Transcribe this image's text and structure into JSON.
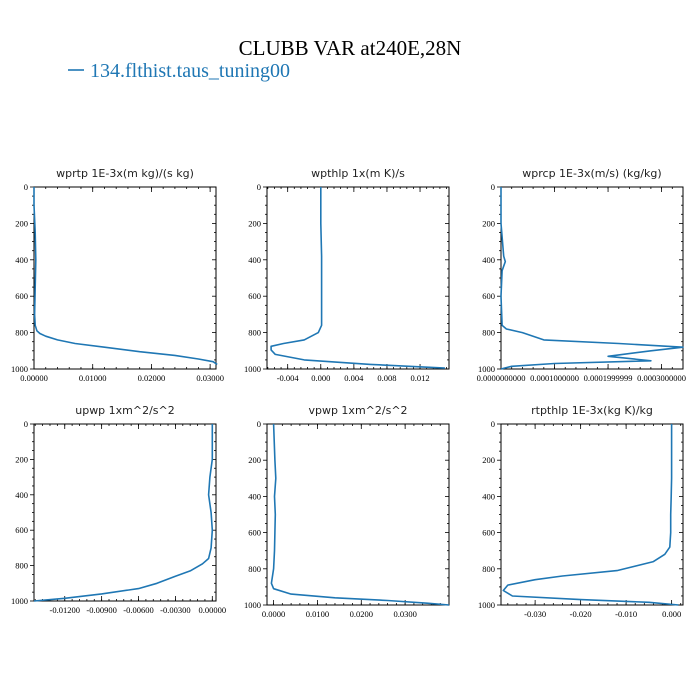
{
  "title": "CLUBB VAR at240E,28N",
  "legend": {
    "label": "134.flthist.taus_tuning00",
    "color": "#1f77b4"
  },
  "chart_data": [
    {
      "type": "line",
      "title": "wprtp  1E-3x(m kg)/(s kg)",
      "xlim": [
        0.0,
        0.031
      ],
      "ylim": [
        1000,
        0
      ],
      "y_inverted": true,
      "xticks": [
        0.0,
        0.01,
        0.02,
        0.03
      ],
      "xtick_labels": [
        "0.00000",
        "0.01000",
        "0.02000",
        "0.03000"
      ],
      "yticks": [
        0,
        200,
        400,
        600,
        800,
        1000
      ],
      "ytick_labels": [
        "0",
        "200",
        "400",
        "600",
        "800",
        "1000"
      ],
      "series": [
        {
          "name": "134.flthist.taus_tuning00",
          "color": "#1f77b4",
          "x": [
            0.0,
            0.0,
            0.0002,
            0.0003,
            0.0002,
            0.0001,
            0.0002,
            0.0005,
            0.001,
            0.002,
            0.004,
            0.007,
            0.012,
            0.018,
            0.024,
            0.028,
            0.0305,
            0.0312
          ],
          "y": [
            0,
            100,
            250,
            400,
            550,
            700,
            760,
            790,
            805,
            820,
            840,
            860,
            880,
            905,
            925,
            945,
            960,
            975
          ]
        }
      ]
    },
    {
      "type": "line",
      "title": "wpthlp  1x(m K)/s",
      "xlim": [
        -0.0065,
        0.0155
      ],
      "ylim": [
        1000,
        0
      ],
      "y_inverted": true,
      "xticks": [
        -0.004,
        0.0,
        0.004,
        0.008,
        0.012
      ],
      "xtick_labels": [
        "-0.004",
        "0.000",
        "0.004",
        "0.008",
        "0.012"
      ],
      "yticks": [
        0,
        200,
        400,
        600,
        800,
        1000
      ],
      "ytick_labels": [
        "0",
        "200",
        "400",
        "600",
        "800",
        "1000"
      ],
      "series": [
        {
          "name": "134.flthist.taus_tuning00",
          "color": "#1f77b4",
          "x": [
            0.0,
            0.0,
            0.0001,
            0.0001,
            0.0001,
            0.0001,
            0.0001,
            -0.0003,
            -0.002,
            -0.0045,
            -0.006,
            -0.006,
            -0.0055,
            -0.002,
            0.006,
            0.015
          ],
          "y": [
            0,
            200,
            380,
            440,
            580,
            700,
            760,
            800,
            840,
            860,
            875,
            895,
            920,
            950,
            975,
            995
          ]
        }
      ]
    },
    {
      "type": "line",
      "title": "wprcp  1E-3x(m/s) (kg/kg)",
      "xlim": [
        0.0,
        0.00034
      ],
      "ylim": [
        1000,
        0
      ],
      "y_inverted": true,
      "xticks": [
        0.0,
        0.0001,
        0.0002,
        0.0003
      ],
      "xtick_labels": [
        "0.0000000000",
        "0.0001000000",
        "0.0001999999",
        "0.0003000000"
      ],
      "yticks": [
        0,
        200,
        400,
        600,
        800,
        1000
      ],
      "ytick_labels": [
        "0",
        "200",
        "400",
        "600",
        "800",
        "1000"
      ],
      "series": [
        {
          "name": "134.flthist.taus_tuning00",
          "color": "#1f77b4",
          "x": [
            0.0,
            0.0,
            5e-06,
            8e-06,
            2e-06,
            0.0,
            2e-06,
            1e-05,
            4e-05,
            8e-05,
            0.00022,
            0.00034,
            0.00028,
            0.0002,
            0.00028,
            0.0001,
            2e-05,
            0.0
          ],
          "y": [
            0,
            200,
            380,
            410,
            460,
            600,
            760,
            780,
            800,
            840,
            860,
            880,
            900,
            930,
            955,
            970,
            985,
            1000
          ]
        }
      ]
    },
    {
      "type": "line",
      "title": "upwp  1xm^2/s^2",
      "xlim": [
        -0.0145,
        0.0003
      ],
      "ylim": [
        1000,
        0
      ],
      "y_inverted": true,
      "xticks": [
        -0.012,
        -0.009,
        -0.006,
        -0.003,
        0.0
      ],
      "xtick_labels": [
        "-0.01200",
        "-0.00900",
        "-0.00600",
        "-0.00300",
        "0.00000"
      ],
      "yticks": [
        0,
        200,
        400,
        600,
        800,
        1000
      ],
      "ytick_labels": [
        "0",
        "200",
        "400",
        "600",
        "800",
        "1000"
      ],
      "series": [
        {
          "name": "134.flthist.taus_tuning00",
          "color": "#1f77b4",
          "x": [
            0.0,
            0.0,
            -0.0002,
            -0.0003,
            -0.0001,
            0.0,
            -0.0001,
            -0.0003,
            -0.0008,
            -0.0018,
            -0.003,
            -0.0045,
            -0.006,
            -0.009,
            -0.012,
            -0.0145
          ],
          "y": [
            0,
            200,
            300,
            400,
            500,
            600,
            700,
            760,
            790,
            830,
            860,
            900,
            930,
            960,
            985,
            1000
          ]
        }
      ]
    },
    {
      "type": "line",
      "title": "vpwp  1xm^2/s^2",
      "xlim": [
        -0.0015,
        0.04
      ],
      "ylim": [
        1000,
        0
      ],
      "y_inverted": true,
      "xticks": [
        0.0,
        0.01,
        0.02,
        0.03
      ],
      "xtick_labels": [
        "0.0000",
        "0.0100",
        "0.0200",
        "0.0300"
      ],
      "yticks": [
        0,
        200,
        400,
        600,
        800,
        1000
      ],
      "ytick_labels": [
        "0",
        "200",
        "400",
        "600",
        "800",
        "1000"
      ],
      "series": [
        {
          "name": "134.flthist.taus_tuning00",
          "color": "#1f77b4",
          "x": [
            0.0,
            0.0003,
            0.0005,
            0.0002,
            0.0004,
            0.0003,
            0.0002,
            0.0,
            -0.0005,
            0.0,
            0.004,
            0.014,
            0.026,
            0.035,
            0.04
          ],
          "y": [
            0,
            200,
            300,
            400,
            500,
            600,
            700,
            800,
            880,
            910,
            940,
            960,
            975,
            990,
            1000
          ]
        }
      ]
    },
    {
      "type": "line",
      "title": "rtpthlp  1E-3x(kg K)/kg",
      "xlim": [
        -0.0375,
        0.0025
      ],
      "ylim": [
        1000,
        0
      ],
      "y_inverted": true,
      "xticks": [
        -0.03,
        -0.02,
        -0.01,
        0.0
      ],
      "xtick_labels": [
        "-0.030",
        "-0.020",
        "-0.010",
        "0.000"
      ],
      "yticks": [
        0,
        200,
        400,
        600,
        800,
        1000
      ],
      "ytick_labels": [
        "0",
        "200",
        "400",
        "600",
        "800",
        "1000"
      ],
      "series": [
        {
          "name": "134.flthist.taus_tuning00",
          "color": "#1f77b4",
          "x": [
            0.0,
            0.0,
            -0.0001,
            -0.0002,
            -0.0002,
            -0.0004,
            -0.0015,
            -0.004,
            -0.012,
            -0.024,
            -0.03,
            -0.036,
            -0.037,
            -0.035,
            -0.02,
            -0.005,
            0.0015
          ],
          "y": [
            0,
            300,
            400,
            500,
            600,
            680,
            720,
            760,
            810,
            840,
            860,
            890,
            920,
            950,
            970,
            985,
            1000
          ]
        }
      ]
    }
  ]
}
